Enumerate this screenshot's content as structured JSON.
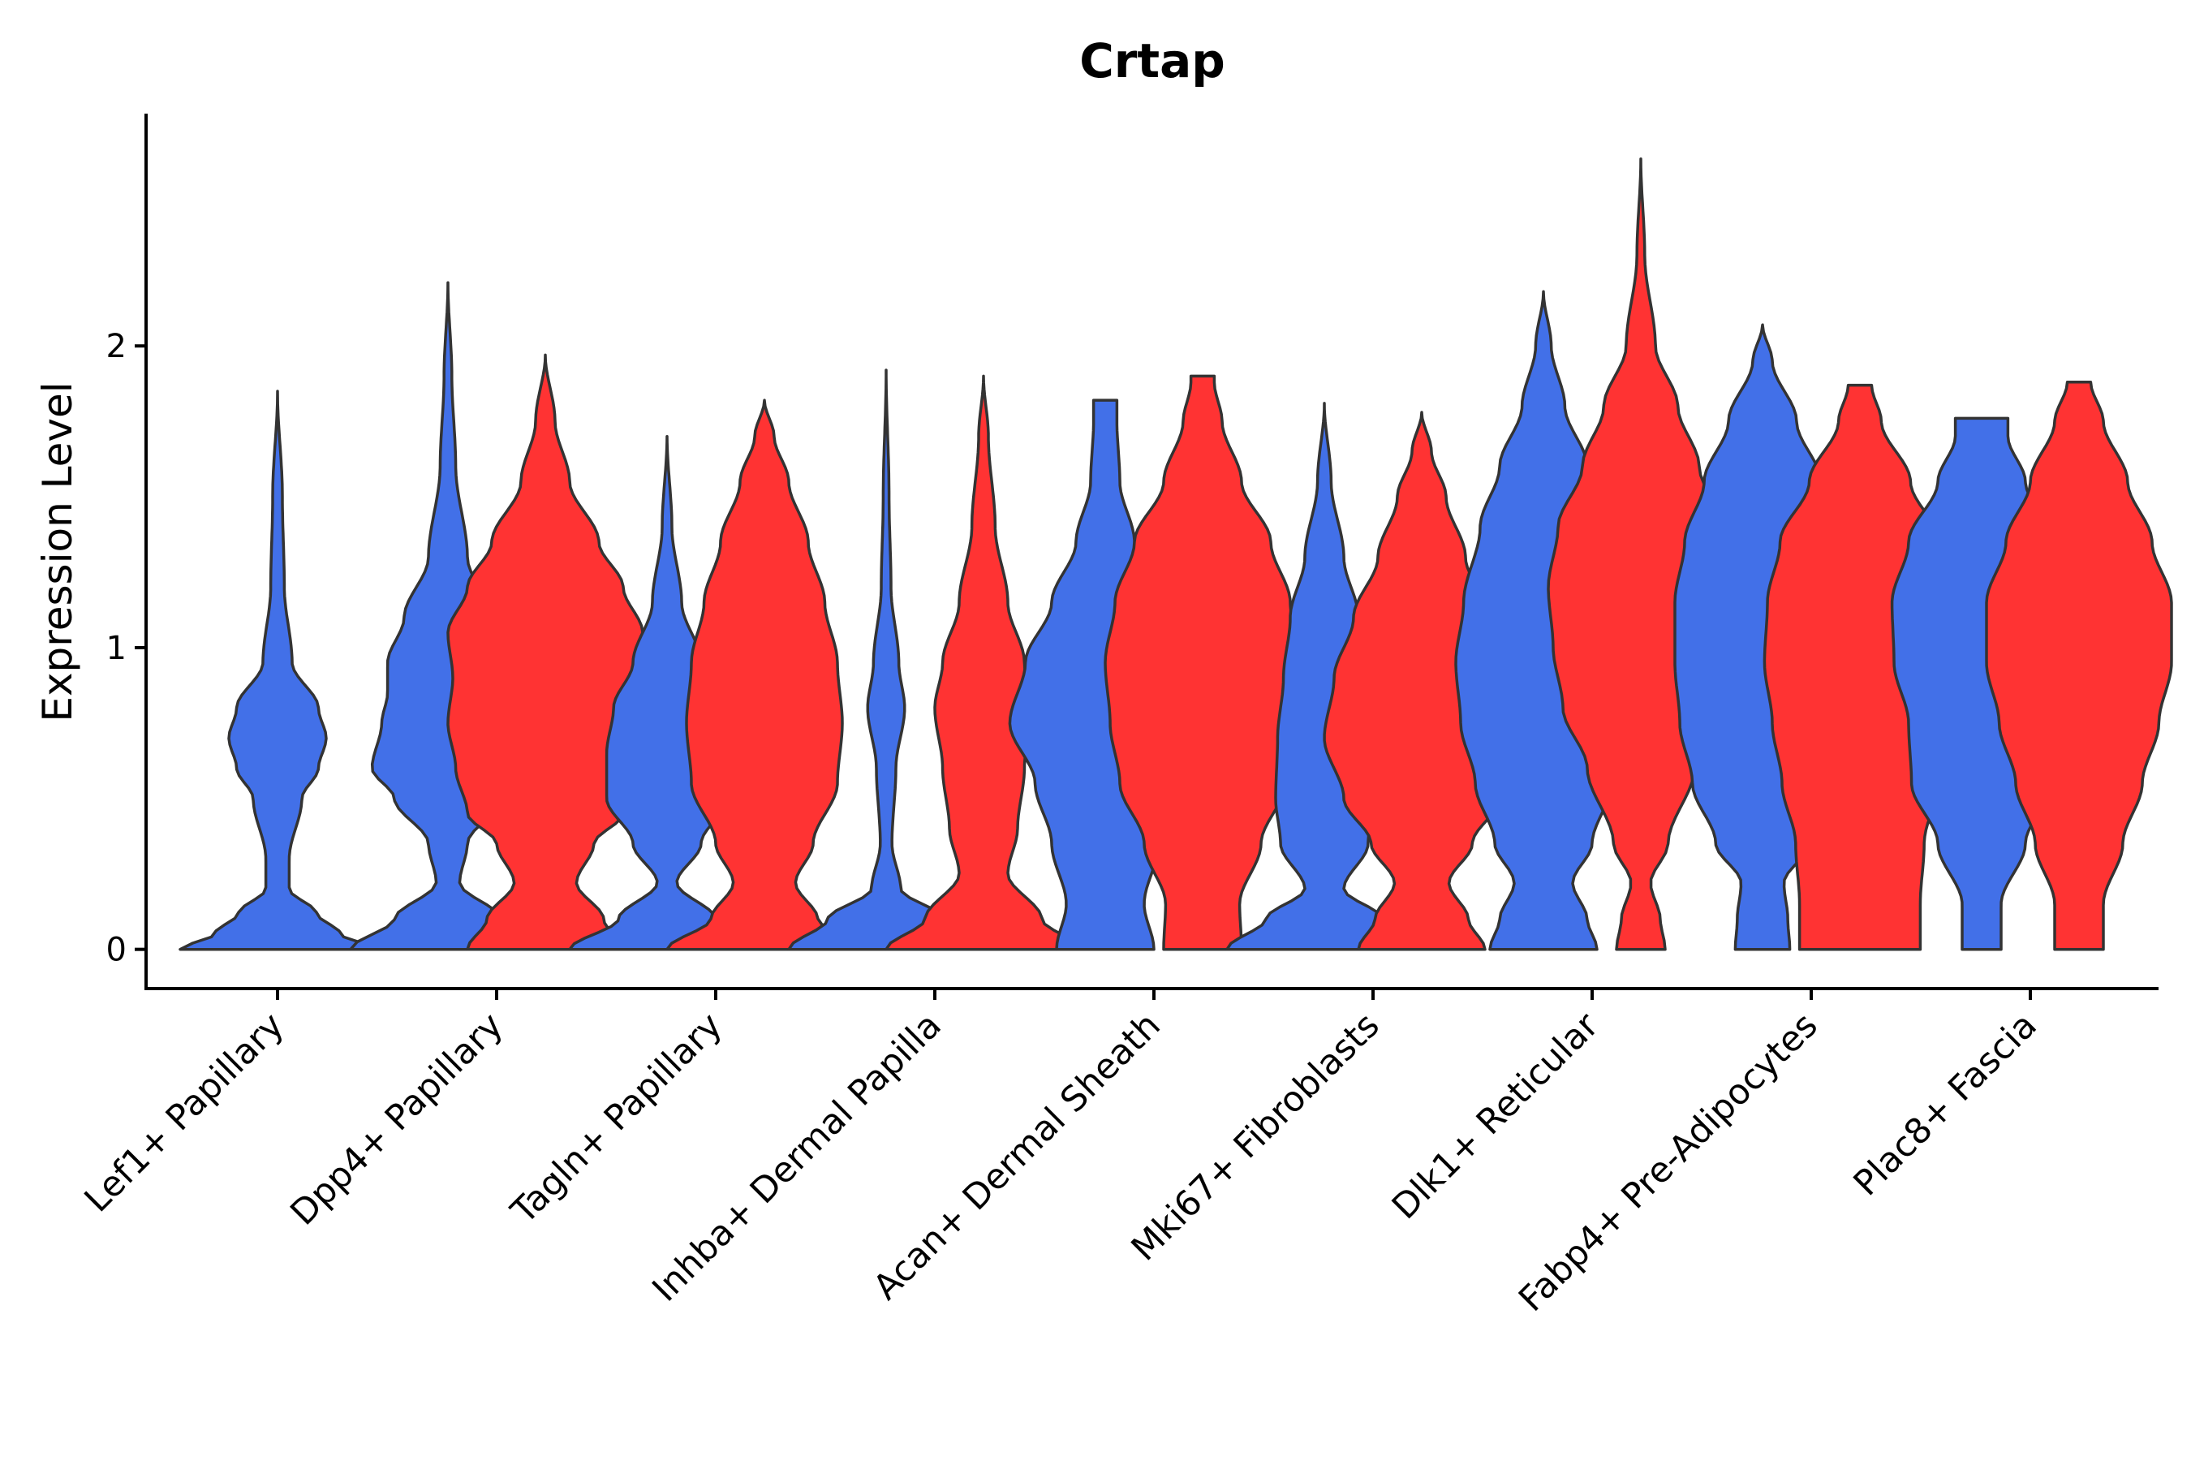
{
  "chart_data": {
    "type": "violin",
    "title": "Crtap",
    "xlabel": "",
    "ylabel": "Expression Level",
    "ylim": [
      -0.13,
      2.77
    ],
    "yticks": [
      0,
      1,
      2
    ],
    "grid": false,
    "legend": "none",
    "colors": {
      "group_a": "#4270E8",
      "group_b": "#FF3333",
      "outline": "#333333"
    },
    "categories": [
      "Lef1+ Papillary",
      "Dpp4+ Papillary",
      "Tagln+ Papillary",
      "Inhba+ Dermal Papilla",
      "Acan+ Dermal Sheath",
      "Mki67+ Fibroblasts",
      "Dlk1+ Reticular",
      "Fabp4+ Pre-Adipocytes",
      "Plac8+ Fascia"
    ],
    "violins": [
      {
        "category": "Lef1+ Papillary",
        "group": "a",
        "max": 1.85,
        "profile": [
          [
            0,
            1.0
          ],
          [
            0.05,
            0.65
          ],
          [
            0.12,
            0.4
          ],
          [
            0.2,
            0.12
          ],
          [
            0.3,
            0.12
          ],
          [
            0.5,
            0.25
          ],
          [
            0.6,
            0.42
          ],
          [
            0.7,
            0.5
          ],
          [
            0.8,
            0.42
          ],
          [
            0.95,
            0.15
          ],
          [
            1.2,
            0.07
          ],
          [
            1.5,
            0.05
          ],
          [
            1.85,
            0
          ]
        ]
      },
      {
        "category": "Dpp4+ Papillary",
        "group": "a",
        "max": 2.21,
        "profile": [
          [
            0,
            1.0
          ],
          [
            0.1,
            0.55
          ],
          [
            0.22,
            0.12
          ],
          [
            0.35,
            0.2
          ],
          [
            0.5,
            0.55
          ],
          [
            0.6,
            0.78
          ],
          [
            0.75,
            0.68
          ],
          [
            0.85,
            0.62
          ],
          [
            0.95,
            0.62
          ],
          [
            1.1,
            0.45
          ],
          [
            1.3,
            0.2
          ],
          [
            1.6,
            0.08
          ],
          [
            1.9,
            0.04
          ],
          [
            2.21,
            0
          ]
        ]
      },
      {
        "category": "Dpp4+ Papillary",
        "group": "b",
        "max": 1.97,
        "profile": [
          [
            0,
            0.8
          ],
          [
            0.1,
            0.6
          ],
          [
            0.22,
            0.32
          ],
          [
            0.35,
            0.5
          ],
          [
            0.45,
            0.8
          ],
          [
            0.6,
            0.92
          ],
          [
            0.75,
            1.0
          ],
          [
            0.9,
            0.95
          ],
          [
            1.05,
            1.0
          ],
          [
            1.2,
            0.8
          ],
          [
            1.35,
            0.55
          ],
          [
            1.55,
            0.25
          ],
          [
            1.75,
            0.1
          ],
          [
            1.97,
            0
          ]
        ]
      },
      {
        "category": "Tagln+ Papillary",
        "group": "a",
        "max": 1.7,
        "profile": [
          [
            0,
            1.0
          ],
          [
            0.1,
            0.5
          ],
          [
            0.22,
            0.1
          ],
          [
            0.35,
            0.35
          ],
          [
            0.5,
            0.62
          ],
          [
            0.65,
            0.62
          ],
          [
            0.8,
            0.55
          ],
          [
            0.95,
            0.35
          ],
          [
            1.15,
            0.15
          ],
          [
            1.4,
            0.05
          ],
          [
            1.7,
            0
          ]
        ]
      },
      {
        "category": "Tagln+ Papillary",
        "group": "b",
        "max": 1.82,
        "profile": [
          [
            0,
            1.0
          ],
          [
            0.1,
            0.55
          ],
          [
            0.22,
            0.32
          ],
          [
            0.35,
            0.5
          ],
          [
            0.55,
            0.75
          ],
          [
            0.75,
            0.8
          ],
          [
            0.95,
            0.75
          ],
          [
            1.15,
            0.62
          ],
          [
            1.35,
            0.45
          ],
          [
            1.55,
            0.25
          ],
          [
            1.7,
            0.1
          ],
          [
            1.82,
            0
          ]
        ]
      },
      {
        "category": "Inhba+ Dermal Papilla",
        "group": "a",
        "max": 1.92,
        "profile": [
          [
            0,
            1.0
          ],
          [
            0.1,
            0.6
          ],
          [
            0.2,
            0.15
          ],
          [
            0.35,
            0.06
          ],
          [
            0.6,
            0.1
          ],
          [
            0.8,
            0.19
          ],
          [
            0.95,
            0.13
          ],
          [
            1.2,
            0.05
          ],
          [
            1.5,
            0.03
          ],
          [
            1.92,
            0
          ]
        ]
      },
      {
        "category": "Inhba+ Dermal Papilla",
        "group": "b",
        "max": 1.9,
        "profile": [
          [
            0,
            1.0
          ],
          [
            0.1,
            0.6
          ],
          [
            0.25,
            0.25
          ],
          [
            0.4,
            0.35
          ],
          [
            0.6,
            0.42
          ],
          [
            0.8,
            0.5
          ],
          [
            0.95,
            0.42
          ],
          [
            1.15,
            0.25
          ],
          [
            1.4,
            0.12
          ],
          [
            1.7,
            0.05
          ],
          [
            1.9,
            0
          ]
        ]
      },
      {
        "category": "Acan+ Dermal Sheath",
        "group": "a",
        "max": 1.82,
        "profile": [
          [
            0,
            0.5
          ],
          [
            0.15,
            0.4
          ],
          [
            0.35,
            0.55
          ],
          [
            0.55,
            0.72
          ],
          [
            0.75,
            0.98
          ],
          [
            0.95,
            0.82
          ],
          [
            1.15,
            0.55
          ],
          [
            1.35,
            0.3
          ],
          [
            1.55,
            0.15
          ],
          [
            1.75,
            0.12
          ],
          [
            1.82,
            0.12
          ]
        ]
      },
      {
        "category": "Acan+ Dermal Sheath",
        "group": "b",
        "max": 1.9,
        "profile": [
          [
            0,
            0.4
          ],
          [
            0.15,
            0.38
          ],
          [
            0.35,
            0.6
          ],
          [
            0.55,
            0.85
          ],
          [
            0.75,
            0.95
          ],
          [
            0.95,
            1.0
          ],
          [
            1.15,
            0.9
          ],
          [
            1.35,
            0.7
          ],
          [
            1.55,
            0.4
          ],
          [
            1.75,
            0.2
          ],
          [
            1.88,
            0.12
          ],
          [
            1.9,
            0.12
          ]
        ]
      },
      {
        "category": "Mki67+ Fibroblasts",
        "group": "a",
        "max": 1.81,
        "profile": [
          [
            0,
            1.0
          ],
          [
            0.1,
            0.6
          ],
          [
            0.2,
            0.2
          ],
          [
            0.35,
            0.45
          ],
          [
            0.5,
            0.5
          ],
          [
            0.7,
            0.48
          ],
          [
            0.9,
            0.42
          ],
          [
            1.1,
            0.35
          ],
          [
            1.3,
            0.2
          ],
          [
            1.55,
            0.07
          ],
          [
            1.81,
            0
          ]
        ]
      },
      {
        "category": "Mki67+ Fibroblasts",
        "group": "b",
        "max": 1.78,
        "profile": [
          [
            0,
            0.65
          ],
          [
            0.1,
            0.48
          ],
          [
            0.22,
            0.28
          ],
          [
            0.35,
            0.52
          ],
          [
            0.5,
            0.8
          ],
          [
            0.7,
            1.0
          ],
          [
            0.9,
            0.9
          ],
          [
            1.1,
            0.7
          ],
          [
            1.3,
            0.45
          ],
          [
            1.5,
            0.25
          ],
          [
            1.65,
            0.1
          ],
          [
            1.78,
            0
          ]
        ]
      },
      {
        "category": "Dlk1+ Reticular",
        "group": "a",
        "max": 2.18,
        "profile": [
          [
            0,
            0.55
          ],
          [
            0.1,
            0.45
          ],
          [
            0.22,
            0.3
          ],
          [
            0.35,
            0.5
          ],
          [
            0.55,
            0.7
          ],
          [
            0.75,
            0.85
          ],
          [
            0.95,
            0.9
          ],
          [
            1.15,
            0.82
          ],
          [
            1.4,
            0.65
          ],
          [
            1.6,
            0.45
          ],
          [
            1.8,
            0.22
          ],
          [
            2.0,
            0.08
          ],
          [
            2.18,
            0
          ]
        ]
      },
      {
        "category": "Dlk1+ Reticular",
        "group": "b",
        "max": 2.62,
        "profile": [
          [
            0,
            0.25
          ],
          [
            0.1,
            0.2
          ],
          [
            0.22,
            0.1
          ],
          [
            0.35,
            0.28
          ],
          [
            0.6,
            0.55
          ],
          [
            0.8,
            0.8
          ],
          [
            1.0,
            0.9
          ],
          [
            1.2,
            0.95
          ],
          [
            1.4,
            0.85
          ],
          [
            1.6,
            0.6
          ],
          [
            1.8,
            0.38
          ],
          [
            2.0,
            0.15
          ],
          [
            2.3,
            0.04
          ],
          [
            2.62,
            0
          ]
        ]
      },
      {
        "category": "Fabp4+ Pre-Adipocytes",
        "group": "a",
        "max": 2.07,
        "profile": [
          [
            0,
            0.28
          ],
          [
            0.1,
            0.26
          ],
          [
            0.22,
            0.22
          ],
          [
            0.35,
            0.48
          ],
          [
            0.55,
            0.72
          ],
          [
            0.75,
            0.85
          ],
          [
            0.95,
            0.9
          ],
          [
            1.15,
            0.9
          ],
          [
            1.35,
            0.8
          ],
          [
            1.55,
            0.6
          ],
          [
            1.75,
            0.35
          ],
          [
            1.95,
            0.1
          ],
          [
            2.07,
            0
          ]
        ]
      },
      {
        "category": "Fabp4+ Pre-Adipocytes",
        "group": "b",
        "max": 1.87,
        "profile": [
          [
            0,
            0.62
          ],
          [
            0.15,
            0.62
          ],
          [
            0.35,
            0.66
          ],
          [
            0.55,
            0.8
          ],
          [
            0.75,
            0.9
          ],
          [
            0.95,
            0.98
          ],
          [
            1.15,
            0.95
          ],
          [
            1.35,
            0.82
          ],
          [
            1.55,
            0.52
          ],
          [
            1.75,
            0.22
          ],
          [
            1.87,
            0.12
          ]
        ]
      },
      {
        "category": "Plac8+ Fascia",
        "group": "a",
        "max": 1.76,
        "profile": [
          [
            0,
            0.2
          ],
          [
            0.15,
            0.2
          ],
          [
            0.35,
            0.45
          ],
          [
            0.55,
            0.72
          ],
          [
            0.75,
            0.75
          ],
          [
            0.95,
            0.9
          ],
          [
            1.15,
            0.92
          ],
          [
            1.35,
            0.75
          ],
          [
            1.55,
            0.45
          ],
          [
            1.7,
            0.27
          ],
          [
            1.76,
            0.27
          ]
        ]
      },
      {
        "category": "Plac8+ Fascia",
        "group": "b",
        "max": 1.88,
        "profile": [
          [
            0,
            0.25
          ],
          [
            0.15,
            0.25
          ],
          [
            0.35,
            0.45
          ],
          [
            0.55,
            0.65
          ],
          [
            0.75,
            0.82
          ],
          [
            0.95,
            0.95
          ],
          [
            1.15,
            0.95
          ],
          [
            1.35,
            0.75
          ],
          [
            1.55,
            0.5
          ],
          [
            1.75,
            0.25
          ],
          [
            1.88,
            0.12
          ]
        ]
      }
    ]
  }
}
